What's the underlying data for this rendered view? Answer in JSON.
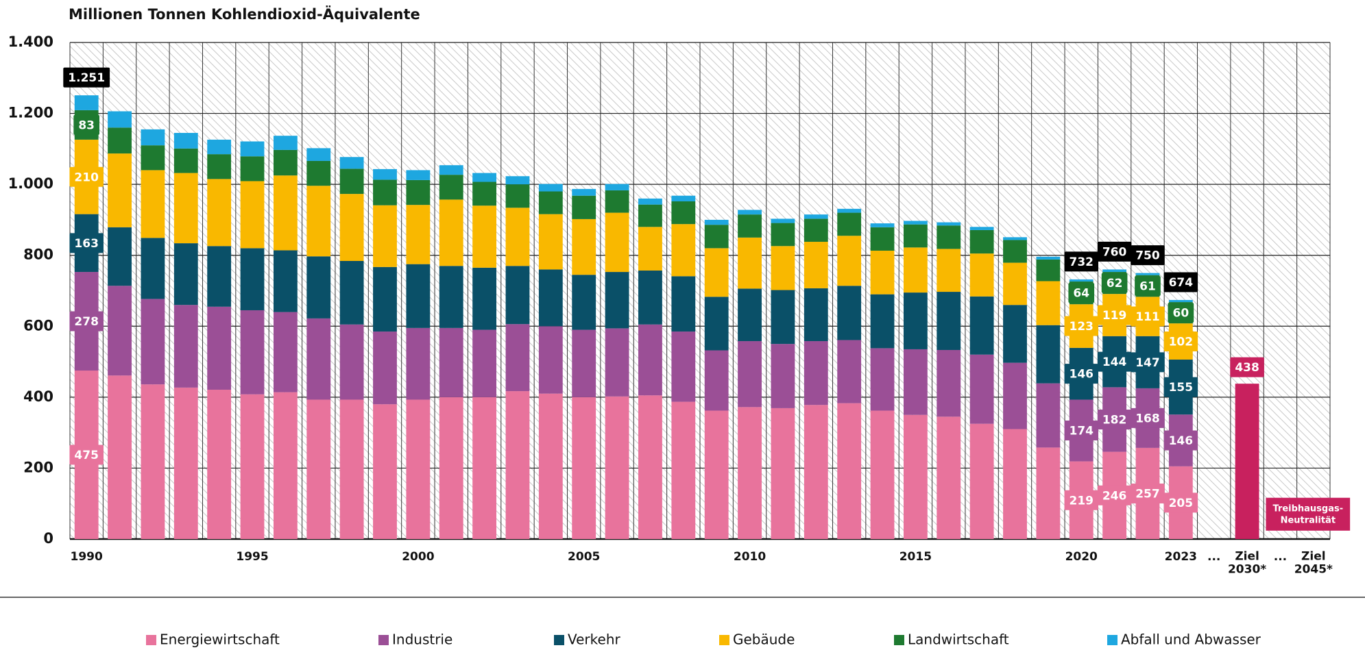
{
  "chart_data": {
    "type": "stacked_bar",
    "title": "Millionen Tonnen Kohlendioxid-Äquivalente",
    "categories": [
      "1990",
      null,
      null,
      null,
      null,
      "1995",
      null,
      null,
      null,
      null,
      "2000",
      null,
      null,
      null,
      null,
      "2005",
      null,
      null,
      null,
      null,
      "2010",
      null,
      null,
      null,
      null,
      "2015",
      null,
      null,
      null,
      null,
      "2020",
      null,
      null,
      "2023",
      "...",
      "Ziel 2030*",
      "...",
      "Ziel 2045*"
    ],
    "series": [
      {
        "name": "Energiewirtschaft",
        "color": "#e8739c",
        "label_text_color": "#ffffff",
        "values": [
          475,
          461,
          436,
          427,
          421,
          408,
          414,
          393,
          393,
          380,
          393,
          400,
          400,
          417,
          410,
          400,
          402,
          405,
          387,
          362,
          372,
          369,
          378,
          383,
          362,
          350,
          345,
          325,
          310,
          258,
          219,
          246,
          257,
          205,
          null,
          null,
          null,
          null
        ],
        "value_labels": [
          "475",
          null,
          null,
          null,
          null,
          null,
          null,
          null,
          null,
          null,
          null,
          null,
          null,
          null,
          null,
          null,
          null,
          null,
          null,
          null,
          null,
          null,
          null,
          null,
          null,
          null,
          null,
          null,
          null,
          null,
          "219",
          "246",
          "257",
          "205",
          null,
          null,
          null,
          null
        ]
      },
      {
        "name": "Industrie",
        "color": "#9b4f96",
        "label_text_color": "#ffffff",
        "values": [
          278,
          253,
          241,
          233,
          234,
          237,
          226,
          229,
          212,
          205,
          202,
          195,
          190,
          189,
          190,
          190,
          192,
          200,
          198,
          170,
          186,
          181,
          180,
          178,
          176,
          185,
          188,
          195,
          187,
          181,
          174,
          182,
          168,
          146,
          null,
          null,
          null,
          null
        ],
        "value_labels": [
          "278",
          null,
          null,
          null,
          null,
          null,
          null,
          null,
          null,
          null,
          null,
          null,
          null,
          null,
          null,
          null,
          null,
          null,
          null,
          null,
          null,
          null,
          null,
          null,
          null,
          null,
          null,
          null,
          null,
          null,
          "174",
          "182",
          "168",
          "146",
          null,
          null,
          null,
          null
        ]
      },
      {
        "name": "Verkehr",
        "color": "#0a5068",
        "label_text_color": "#ffffff",
        "values": [
          163,
          165,
          172,
          174,
          171,
          175,
          174,
          175,
          179,
          182,
          180,
          175,
          175,
          164,
          160,
          155,
          159,
          152,
          156,
          151,
          148,
          152,
          149,
          153,
          152,
          160,
          164,
          164,
          163,
          164,
          146,
          144,
          147,
          155,
          null,
          null,
          null,
          null
        ],
        "value_labels": [
          "163",
          null,
          null,
          null,
          null,
          null,
          null,
          null,
          null,
          null,
          null,
          null,
          null,
          null,
          null,
          null,
          null,
          null,
          null,
          null,
          null,
          null,
          null,
          null,
          null,
          null,
          null,
          null,
          null,
          null,
          "146",
          "144",
          "147",
          "155",
          null,
          null,
          null,
          null
        ]
      },
      {
        "name": "Gebäude",
        "color": "#f9b800",
        "label_text_color": "#ffffff",
        "values": [
          210,
          208,
          191,
          198,
          189,
          189,
          211,
          199,
          189,
          174,
          167,
          187,
          175,
          164,
          156,
          157,
          167,
          123,
          147,
          137,
          144,
          124,
          131,
          141,
          123,
          127,
          121,
          121,
          119,
          124,
          123,
          119,
          111,
          102,
          null,
          null,
          null,
          null
        ],
        "value_labels": [
          "210",
          null,
          null,
          null,
          null,
          null,
          null,
          null,
          null,
          null,
          null,
          null,
          null,
          null,
          null,
          null,
          null,
          null,
          null,
          null,
          null,
          null,
          null,
          null,
          null,
          null,
          null,
          null,
          null,
          null,
          "123",
          "119",
          "111",
          "102",
          null,
          null,
          null,
          null
        ]
      },
      {
        "name": "Landwirtschaft",
        "color": "#1e7a30",
        "label_text_color": "#ffffff",
        "values": [
          83,
          73,
          70,
          69,
          70,
          70,
          72,
          70,
          71,
          72,
          70,
          70,
          67,
          66,
          64,
          66,
          63,
          63,
          64,
          66,
          65,
          65,
          65,
          65,
          66,
          65,
          66,
          66,
          64,
          61,
          64,
          62,
          61,
          60,
          null,
          null,
          null,
          null
        ],
        "value_labels": [
          "83",
          null,
          null,
          null,
          null,
          null,
          null,
          null,
          null,
          null,
          null,
          null,
          null,
          null,
          null,
          null,
          null,
          null,
          null,
          null,
          null,
          null,
          null,
          null,
          null,
          null,
          null,
          null,
          null,
          null,
          "64",
          "62",
          "61",
          "60",
          null,
          null,
          null,
          null
        ]
      },
      {
        "name": "Abfall und Abwasser",
        "color": "#1ea7e0",
        "label_text_color": "#ffffff",
        "values": [
          42,
          46,
          45,
          44,
          41,
          42,
          40,
          36,
          33,
          30,
          28,
          27,
          25,
          23,
          21,
          19,
          18,
          17,
          16,
          14,
          13,
          12,
          12,
          11,
          11,
          10,
          9,
          9,
          8,
          8,
          6,
          7,
          6,
          6,
          null,
          null,
          null,
          null
        ]
      }
    ],
    "totals": {
      "color": "#000000",
      "values": [
        1251,
        null,
        null,
        null,
        null,
        null,
        null,
        null,
        null,
        null,
        null,
        null,
        null,
        null,
        null,
        null,
        null,
        null,
        null,
        null,
        null,
        null,
        null,
        null,
        null,
        null,
        null,
        null,
        null,
        null,
        732,
        760,
        750,
        674,
        null,
        null,
        null,
        null
      ],
      "value_labels": [
        "1.251",
        null,
        null,
        null,
        null,
        null,
        null,
        null,
        null,
        null,
        null,
        null,
        null,
        null,
        null,
        null,
        null,
        null,
        null,
        null,
        null,
        null,
        null,
        null,
        null,
        null,
        null,
        null,
        null,
        null,
        "732",
        "760",
        "750",
        "674",
        null,
        null,
        null,
        null
      ]
    },
    "target": {
      "color": "#c8215e",
      "values": [
        null,
        null,
        null,
        null,
        null,
        null,
        null,
        null,
        null,
        null,
        null,
        null,
        null,
        null,
        null,
        null,
        null,
        null,
        null,
        null,
        null,
        null,
        null,
        null,
        null,
        null,
        null,
        null,
        null,
        null,
        null,
        null,
        null,
        null,
        null,
        438,
        null,
        null
      ],
      "annotation": "Treibhausgas-Neutralität"
    },
    "ylim": [
      0,
      1400
    ],
    "yticks": [
      0,
      200,
      400,
      600,
      800,
      {
        "value": 1000,
        "label": "1.000"
      },
      {
        "value": 1200,
        "label": "1.200"
      },
      {
        "value": 1400,
        "label": "1.400"
      }
    ],
    "grid": true,
    "legend": "bottom"
  }
}
